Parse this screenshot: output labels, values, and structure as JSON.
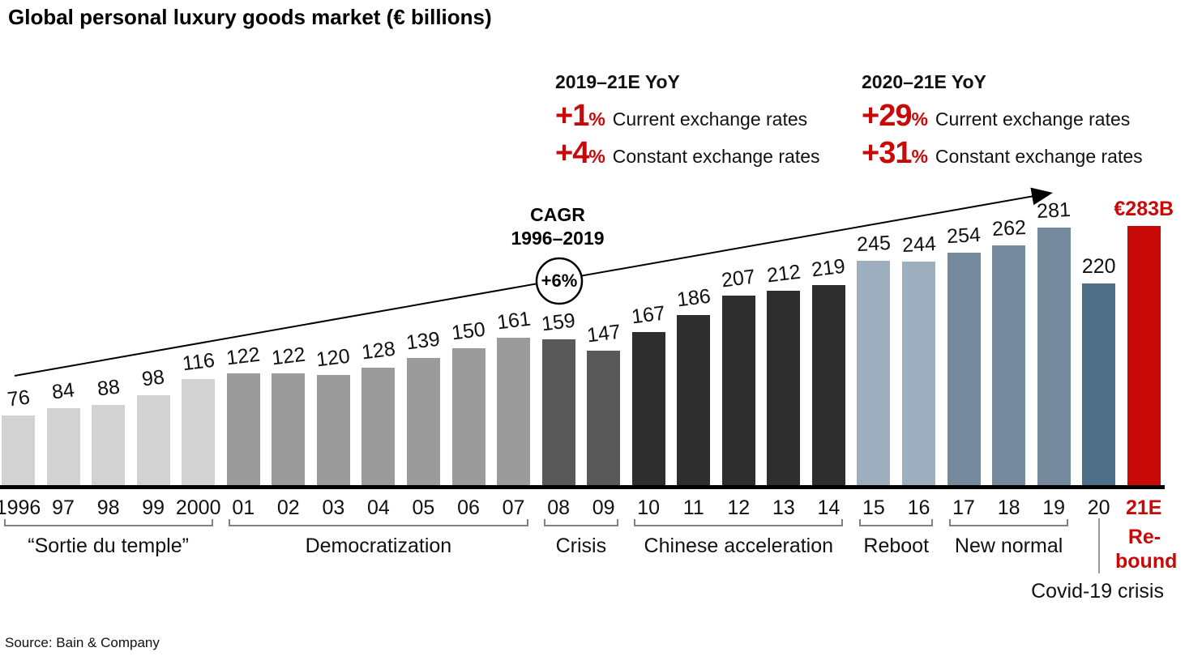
{
  "title": "Global personal luxury goods market (€ billions)",
  "source": "Source: Bain & Company",
  "colors": {
    "accent_red": "#c90808",
    "axis_black": "#000000",
    "bracket_gray": "#828282"
  },
  "annotations": {
    "left": {
      "header": "2019–21E YoY",
      "rows": [
        {
          "pct": "+1",
          "sign": "%",
          "label": "Current exchange rates"
        },
        {
          "pct": "+4",
          "sign": "%",
          "label": "Constant exchange rates"
        }
      ]
    },
    "right": {
      "header": "2020–21E YoY",
      "rows": [
        {
          "pct": "+29",
          "sign": "%",
          "label": "Current exchange rates"
        },
        {
          "pct": "+31",
          "sign": "%",
          "label": "Constant exchange rates"
        }
      ]
    },
    "cagr": {
      "line1": "CAGR",
      "line2": "1996–2019",
      "badge": "+6%"
    }
  },
  "chart_data": {
    "type": "bar",
    "title": "Global personal luxury goods market (€ billions)",
    "unit": "€ billions",
    "grid": false,
    "ylim": [
      0,
      300
    ],
    "categories": [
      "1996",
      "97",
      "98",
      "99",
      "2000",
      "01",
      "02",
      "03",
      "04",
      "05",
      "06",
      "07",
      "08",
      "09",
      "10",
      "11",
      "12",
      "13",
      "14",
      "15",
      "16",
      "17",
      "18",
      "19",
      "20",
      "21E"
    ],
    "values": [
      76,
      84,
      88,
      98,
      116,
      122,
      122,
      120,
      128,
      139,
      150,
      161,
      159,
      147,
      167,
      186,
      207,
      212,
      219,
      245,
      244,
      254,
      262,
      281,
      220,
      283
    ],
    "value_labels": [
      "76",
      "84",
      "88",
      "98",
      "116",
      "122",
      "122",
      "120",
      "128",
      "139",
      "150",
      "161",
      "159",
      "147",
      "167",
      "186",
      "207",
      "212",
      "219",
      "245",
      "244",
      "254",
      "262",
      "281",
      "220",
      "€283B"
    ],
    "segments": [
      {
        "from": 0,
        "to": 4,
        "color": "#d2d2d2",
        "era": "“Sortie du temple”"
      },
      {
        "from": 5,
        "to": 11,
        "color": "#9b9b9b",
        "era": "Democratization"
      },
      {
        "from": 12,
        "to": 13,
        "color": "#595959",
        "era": "Crisis"
      },
      {
        "from": 14,
        "to": 18,
        "color": "#2e2e2e",
        "era": "Chinese acceleration"
      },
      {
        "from": 19,
        "to": 20,
        "color": "#9dafbe",
        "era": "Reboot"
      },
      {
        "from": 21,
        "to": 23,
        "color": "#75899c",
        "era": "New normal"
      },
      {
        "from": 24,
        "to": 24,
        "color": "#4f6e87",
        "era": ""
      },
      {
        "from": 25,
        "to": 25,
        "color": "#c90808",
        "era": ""
      }
    ],
    "trend_annotation": {
      "cagr": "CAGR 1996–2019",
      "cagr_value": "+6%"
    },
    "covid_note": "Covid-19 crisis",
    "rebound_label_lines": [
      "Re-",
      "bound"
    ]
  }
}
